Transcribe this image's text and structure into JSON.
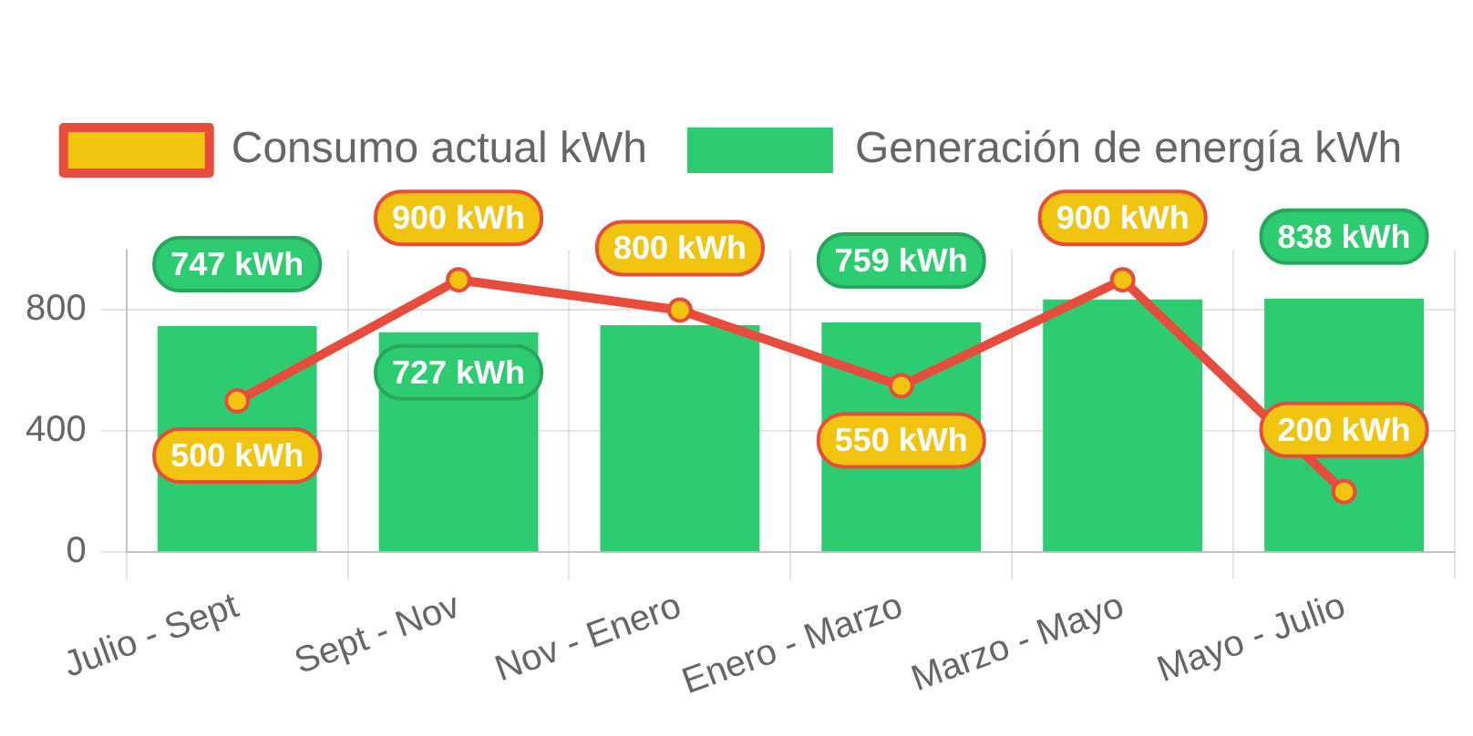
{
  "chart_data": {
    "type": "bar",
    "categories": [
      "Julio - Sept",
      "Sept - Nov",
      "Nov - Enero",
      "Enero - Marzo",
      "Marzo - Mayo",
      "Mayo - Julio"
    ],
    "series": [
      {
        "name": "Consumo actual kWh",
        "type": "line",
        "color": "#e74c3c",
        "colors": [
          "#f1c40f",
          "#f1c40f",
          "#f1c40f",
          "#f1c40f",
          "#f1c40f",
          "#f1c40f"
        ],
        "values": [
          500,
          900,
          800,
          550,
          900,
          200
        ],
        "value_labels": [
          "500 kWh",
          "900 kWh",
          "800 kWh",
          "550 kWh",
          "900 kWh",
          "200 kWh"
        ]
      },
      {
        "name": "Generación de energía kWh",
        "color": "#2ecc71",
        "values": [
          747,
          727,
          750,
          759,
          835,
          838
        ],
        "value_labels": [
          "747 kWh",
          "727 kWh",
          null,
          "759 kWh",
          null,
          "838 kWh"
        ]
      }
    ],
    "ylim": [
      0,
      1000
    ],
    "yticks": [
      0,
      400,
      800
    ],
    "grid": true,
    "legend": "top",
    "marker": "circle",
    "line_style": "solid"
  }
}
